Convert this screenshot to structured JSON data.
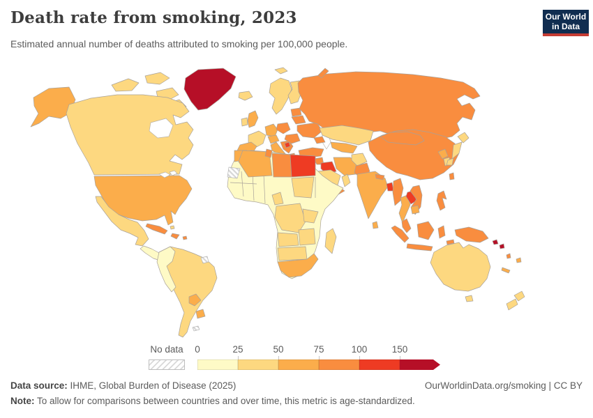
{
  "header": {
    "title": "Death rate from smoking, 2023",
    "subtitle": "Estimated annual number of deaths attributed to smoking per 100,000 people.",
    "logo": {
      "line1": "Our World",
      "line2": "in Data",
      "bg_color": "#102d50",
      "accent_color": "#c53c33"
    }
  },
  "chart_data": {
    "type": "choropleth",
    "title": "Death rate from smoking, 2023",
    "metric": "Estimated annual number of deaths attributed to smoking per 100,000 people",
    "year": "2023",
    "legend": {
      "no_data_label": "No data",
      "tick_labels": [
        "0",
        "25",
        "50",
        "75",
        "100",
        "150"
      ],
      "bin_ranges": [
        "0-25",
        "25-50",
        "50-75",
        "75-100",
        "100-150",
        "150+"
      ],
      "bin_colors": [
        "#fefac6",
        "#fdd880",
        "#fbad4b",
        "#f98d3f",
        "#ee3b23",
        "#b60f27"
      ],
      "no_data_pattern": "diagonal-hatch"
    },
    "regions": {
      "greenland": 5,
      "canada-arctic-islands": 1,
      "canada": 1,
      "alaska": 2,
      "usa": 2,
      "mexico": 1,
      "central-america": 0,
      "cuba": 3,
      "hispaniola": 3,
      "bahamas": 1,
      "puerto-rico": 3,
      "iceland": 1,
      "south-america": 1,
      "colombia-peru": 0,
      "paraguay": 2,
      "uruguay": 2,
      "french-guiana": "no-data",
      "falkland-islands": "no-data",
      "uk": 2,
      "ireland": 1,
      "norway-sweden": 1,
      "finland": 1,
      "svalbard": 1,
      "baltics": 3,
      "france": 1,
      "spain": 2,
      "germany": 2,
      "poland": 3,
      "central-europe": 2,
      "italy": 2,
      "balkans": 3,
      "serbia": 4,
      "greece": 3,
      "romania-hungary": 3,
      "ukraine": 3,
      "belarus": 3,
      "russia": 3,
      "novaya-zemlya": 3,
      "kazakhstan": 1,
      "uzbekistan-turkmenistan": 2,
      "caucasus": 3,
      "turkey": 3,
      "syria": 3,
      "iraq": 4,
      "iran": 2,
      "afghanistan": 1,
      "pakistan": 3,
      "saudi-arabia": 1,
      "yemen": 3,
      "oman": 1,
      "africa-other": 0,
      "morocco": 2,
      "algeria": 2,
      "tunisia": 3,
      "libya": 3,
      "egypt": 4,
      "western-sahara": "no-data",
      "sudan": 1,
      "cameroon": 1,
      "drc": 1,
      "tanzania": 1,
      "angola": 1,
      "zambia-zimbabwe": 1,
      "namibia-botswana": 1,
      "south-africa": 2,
      "madagascar": 1,
      "india": 2,
      "nepal": 3,
      "sri-lanka": 2,
      "bangladesh": 4,
      "myanmar": 3,
      "china": 3,
      "mongolia": 3,
      "north-korea": 2,
      "south-korea": 1,
      "japan": 1,
      "taiwan": 3,
      "thailand": 2,
      "laos": 4,
      "vietnam": 3,
      "cambodia": 2,
      "malaysia": 3,
      "indonesia-sumatra": 3,
      "indonesia-java": 3,
      "borneo": 3,
      "sulawesi": 3,
      "timor": 3,
      "philippines": 3,
      "new-guinea": 3,
      "solomon-islands": 5,
      "vanuatu": 3,
      "fiji": 2,
      "new-caledonia": 2,
      "australia": 1,
      "tasmania": 1,
      "new-zealand": 1
    }
  },
  "footer": {
    "source_label": "Data source:",
    "source_text": " IHME, Global Burden of Disease (2025)",
    "note_label": "Note:",
    "note_text": " To allow for comparisons between countries and over time, this metric is age-standardized.",
    "link_text": "OurWorldinData.org/smoking | CC BY"
  }
}
